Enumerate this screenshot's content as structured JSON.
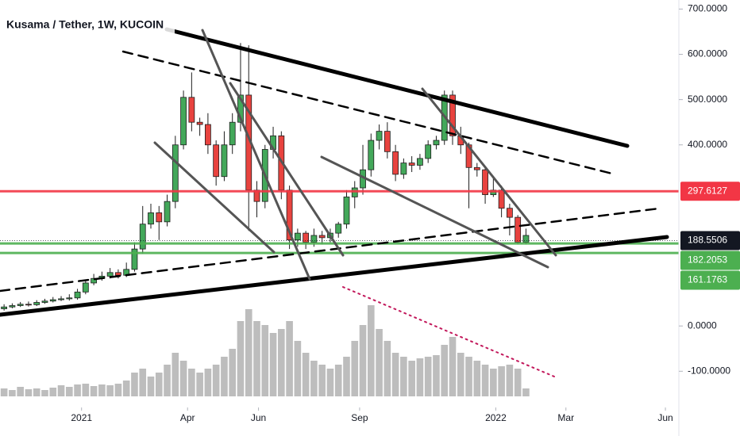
{
  "chart_data": {
    "type": "candlestick",
    "title": "Kusama / Tether, 1W, KUCOIN",
    "open": [
      38,
      42,
      45,
      48,
      47,
      52,
      55,
      58,
      60,
      62,
      75,
      95,
      105,
      110,
      118,
      112,
      125,
      170,
      225,
      250,
      230,
      275,
      400,
      505,
      450,
      445,
      400,
      330,
      400,
      450,
      510,
      300,
      275,
      390,
      420,
      300,
      190,
      205,
      185,
      200,
      195,
      205,
      225,
      285,
      305,
      345,
      410,
      430,
      385,
      335,
      360,
      355,
      370,
      400,
      410,
      510,
      420,
      400,
      350,
      345,
      290,
      300,
      260,
      240,
      185
    ],
    "high": [
      48,
      50,
      53,
      54,
      57,
      60,
      64,
      66,
      70,
      82,
      102,
      115,
      120,
      128,
      125,
      140,
      185,
      265,
      270,
      265,
      290,
      420,
      520,
      560,
      460,
      470,
      410,
      430,
      470,
      625,
      620,
      320,
      400,
      440,
      430,
      310,
      215,
      210,
      215,
      210,
      215,
      230,
      300,
      320,
      400,
      425,
      445,
      450,
      400,
      370,
      375,
      380,
      410,
      420,
      520,
      520,
      440,
      405,
      360,
      350,
      330,
      310,
      270,
      245,
      215
    ],
    "low": [
      34,
      39,
      42,
      43,
      44,
      49,
      52,
      55,
      56,
      58,
      70,
      90,
      100,
      105,
      105,
      108,
      120,
      160,
      215,
      190,
      220,
      260,
      390,
      430,
      420,
      380,
      310,
      320,
      380,
      430,
      210,
      240,
      260,
      370,
      280,
      170,
      175,
      170,
      175,
      180,
      185,
      195,
      215,
      260,
      290,
      330,
      390,
      370,
      320,
      325,
      340,
      345,
      360,
      390,
      400,
      400,
      380,
      260,
      330,
      270,
      285,
      240,
      200,
      180,
      180
    ],
    "close": [
      42,
      45,
      48,
      47,
      52,
      55,
      58,
      60,
      62,
      75,
      95,
      105,
      110,
      118,
      112,
      125,
      170,
      225,
      250,
      230,
      275,
      400,
      505,
      450,
      445,
      400,
      330,
      400,
      450,
      510,
      300,
      275,
      390,
      420,
      300,
      190,
      205,
      185,
      200,
      195,
      205,
      225,
      285,
      305,
      345,
      410,
      430,
      385,
      335,
      360,
      355,
      370,
      400,
      410,
      510,
      420,
      400,
      350,
      345,
      290,
      300,
      260,
      240,
      185,
      200
    ],
    "volume": [
      10,
      8,
      12,
      9,
      10,
      8,
      11,
      14,
      12,
      15,
      16,
      13,
      15,
      14,
      16,
      20,
      30,
      35,
      25,
      30,
      40,
      55,
      45,
      35,
      30,
      35,
      40,
      50,
      60,
      95,
      110,
      95,
      90,
      80,
      85,
      95,
      70,
      55,
      45,
      40,
      35,
      40,
      50,
      70,
      90,
      115,
      85,
      70,
      55,
      50,
      45,
      48,
      50,
      52,
      65,
      75,
      55,
      50,
      45,
      40,
      35,
      38,
      40,
      35,
      10
    ],
    "up_color": "#43a85a",
    "down_color": "#e8433f",
    "volume_color": "#bdbdbd",
    "ylim": [
      -180,
      720
    ],
    "yticks": [
      {
        "value": 700,
        "label": "700.0000"
      },
      {
        "value": 600,
        "label": "600.0000"
      },
      {
        "value": 500,
        "label": "500.0000"
      },
      {
        "value": 400,
        "label": "400.0000"
      },
      {
        "value": 0,
        "label": "0.0000"
      },
      {
        "value": -100,
        "label": "-100.0000"
      }
    ],
    "xlim": [
      -0.5,
      82.75
    ],
    "xticks": [
      {
        "value": 9.5,
        "label": "2021"
      },
      {
        "value": 22.5,
        "label": "Apr"
      },
      {
        "value": 31.2,
        "label": "Jun"
      },
      {
        "value": 43.6,
        "label": "Sep"
      },
      {
        "value": 60.3,
        "label": "2022"
      },
      {
        "value": 68.9,
        "label": "Mar"
      },
      {
        "value": 81.1,
        "label": "Jun"
      }
    ],
    "price_lines": [
      {
        "value": 297.6127,
        "color": "#f23645"
      },
      {
        "value": 188.5506,
        "color": "#131722"
      },
      {
        "value": 182.2053,
        "color": "#4caf50"
      },
      {
        "value": 161.1763,
        "color": "#4caf50"
      }
    ]
  }
}
